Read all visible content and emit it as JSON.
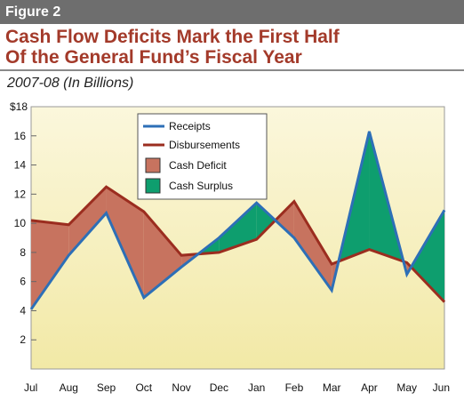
{
  "figure_label": "Figure 2",
  "title_line1": "Cash Flow Deficits Mark the First Half",
  "title_line2": "Of the General Fund’s Fiscal Year",
  "subtitle": "2007-08 (In Billions)",
  "colors": {
    "receipts": "#2d6fb7",
    "disbursements": "#9b2d1f",
    "deficit": "#c7735f",
    "surplus": "#0e9e6e",
    "plot_bg_top": "#fbf7dc",
    "plot_bg_bottom": "#f2e9a6"
  },
  "chart_data": {
    "type": "area",
    "title": "Cash Flow Deficits Mark the First Half Of the General Fund’s Fiscal Year",
    "subtitle": "2007-08 (In Billions)",
    "categories": [
      "Jul",
      "Aug",
      "Sep",
      "Oct",
      "Nov",
      "Dec",
      "Jan",
      "Feb",
      "Mar",
      "Apr",
      "May",
      "Jun"
    ],
    "series": [
      {
        "name": "Receipts",
        "values": [
          4.1,
          7.8,
          10.7,
          4.9,
          7.0,
          9.0,
          11.4,
          9.0,
          5.4,
          16.3,
          6.5,
          10.9
        ]
      },
      {
        "name": "Disbursements",
        "values": [
          10.2,
          9.9,
          12.5,
          10.8,
          7.8,
          8.0,
          8.9,
          11.5,
          7.2,
          8.2,
          7.3,
          4.6
        ]
      }
    ],
    "fill_legend": [
      "Cash Deficit",
      "Cash Surplus"
    ],
    "ylim": [
      0,
      18
    ],
    "yticks": [
      2,
      4,
      6,
      8,
      10,
      12,
      14,
      16
    ],
    "y_top_label": "$18",
    "grid": false,
    "legend_position": "top-center"
  }
}
